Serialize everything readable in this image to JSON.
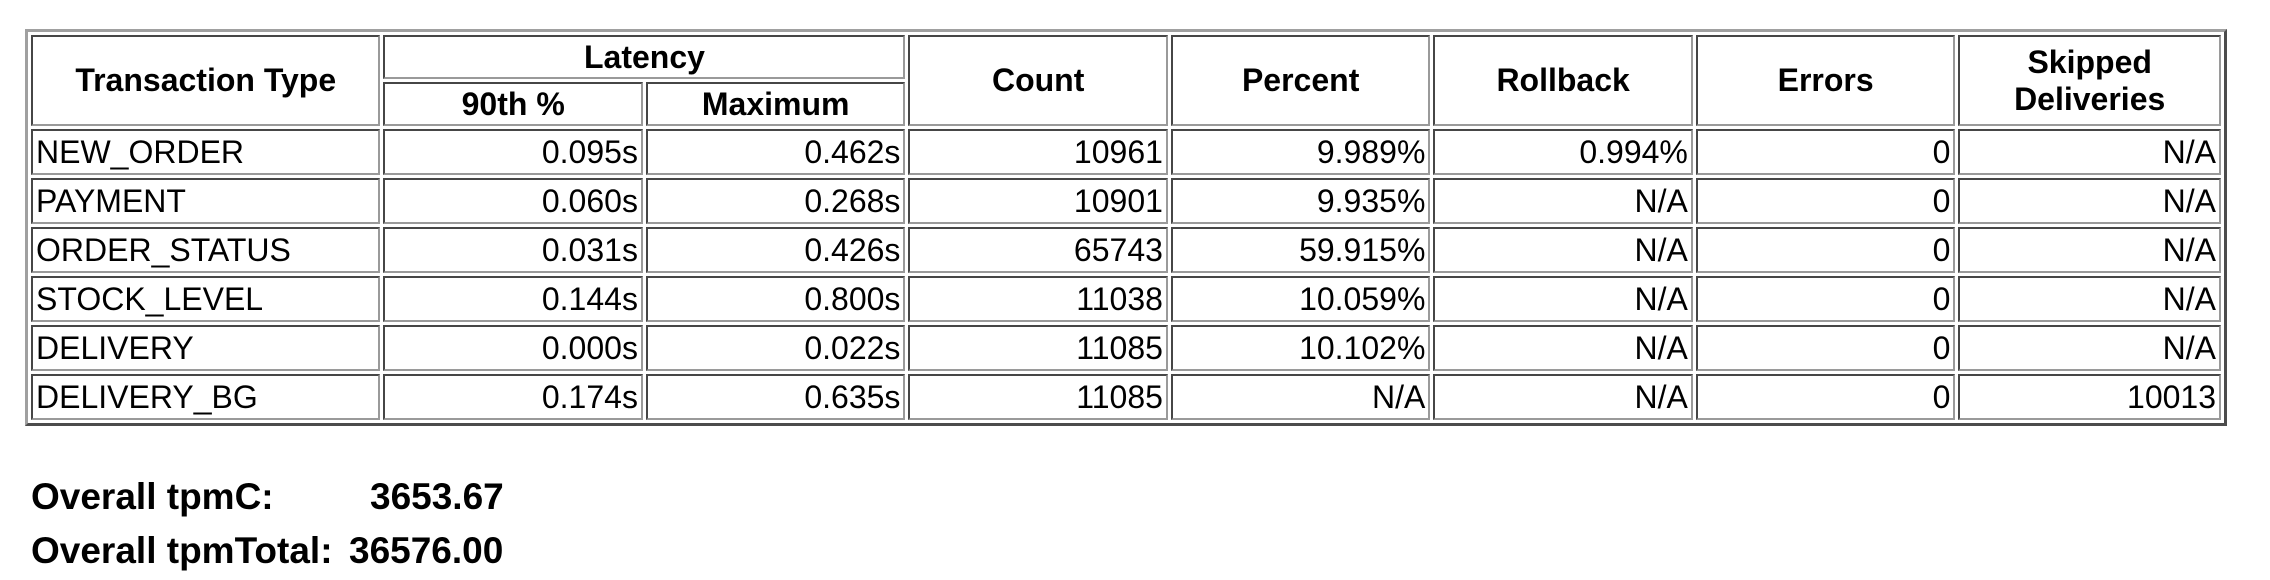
{
  "table": {
    "headers": {
      "transaction_type": "Transaction Type",
      "latency": "Latency",
      "latency_90th": "90th %",
      "latency_max": "Maximum",
      "count": "Count",
      "percent": "Percent",
      "rollback": "Rollback",
      "errors": "Errors",
      "skipped_deliveries": "Skipped Deliveries"
    },
    "rows": [
      [
        "NEW_ORDER",
        "0.095s",
        "0.462s",
        "10961",
        "9.989%",
        "0.994%",
        "0",
        "N/A"
      ],
      [
        "PAYMENT",
        "0.060s",
        "0.268s",
        "10901",
        "9.935%",
        "N/A",
        "0",
        "N/A"
      ],
      [
        "ORDER_STATUS",
        "0.031s",
        "0.426s",
        "65743",
        "59.915%",
        "N/A",
        "0",
        "N/A"
      ],
      [
        "STOCK_LEVEL",
        "0.144s",
        "0.800s",
        "11038",
        "10.059%",
        "N/A",
        "0",
        "N/A"
      ],
      [
        "DELIVERY",
        "0.000s",
        "0.022s",
        "11085",
        "10.102%",
        "N/A",
        "0",
        "N/A"
      ],
      [
        "DELIVERY_BG",
        "0.174s",
        "0.635s",
        "11085",
        "N/A",
        "N/A",
        "0",
        "10013"
      ]
    ]
  },
  "summary": {
    "tpmc_label": "Overall tpmC:",
    "tpmc_value": "3653.67",
    "tpmtotal_label": "Overall tpmTotal:",
    "tpmtotal_value": "36576.00"
  }
}
